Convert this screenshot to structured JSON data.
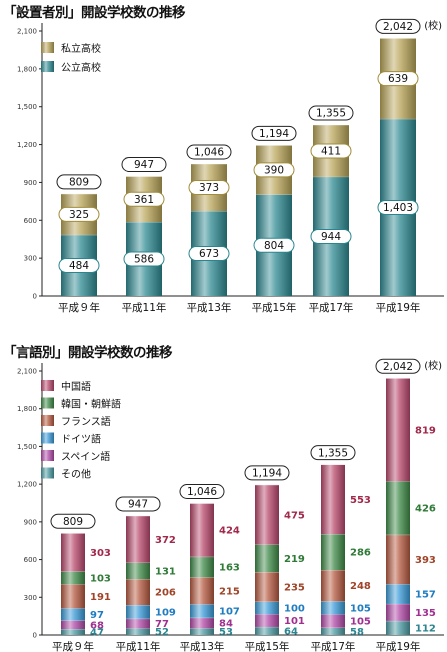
{
  "chart_data": [
    {
      "type": "bar",
      "stacked": true,
      "title": "「設置者別」開設学校数の推移",
      "unit_label": "(校)",
      "categories": [
        "平成９年",
        "平成11年",
        "平成13年",
        "平成15年",
        "平成17年",
        "平成19年"
      ],
      "ylim": [
        0,
        2100
      ],
      "y_ticks": [
        "0",
        "300",
        "600",
        "900",
        "1,200",
        "1,500",
        "1,800",
        "2,100"
      ],
      "grid": false,
      "legend_position": "top-left",
      "series": [
        {
          "name": "公立高校",
          "values": [
            484,
            586,
            673,
            804,
            944,
            1403
          ],
          "labels": [
            "484",
            "586",
            "673",
            "804",
            "944",
            "1,403"
          ],
          "color": "#2e8a92",
          "label_color": "#2a8590"
        },
        {
          "name": "私立高校",
          "values": [
            325,
            361,
            373,
            390,
            411,
            639
          ],
          "labels": [
            "325",
            "361",
            "373",
            "390",
            "411",
            "639"
          ],
          "color": "#b8a458",
          "label_color": "#a08c3a"
        }
      ],
      "totals": [
        809,
        947,
        1046,
        1194,
        1355,
        2042
      ],
      "total_labels": [
        "809",
        "947",
        "1,046",
        "1,194",
        "1,355",
        "2,042"
      ]
    },
    {
      "type": "bar",
      "stacked": true,
      "title": "「言語別」開設学校数の推移",
      "unit_label": "(校)",
      "categories": [
        "平成９年",
        "平成11年",
        "平成13年",
        "平成15年",
        "平成17年",
        "平成19年"
      ],
      "ylim": [
        0,
        2100
      ],
      "y_ticks": [
        "0",
        "300",
        "600",
        "900",
        "1,200",
        "1,500",
        "1,800",
        "2,100"
      ],
      "grid": false,
      "legend_position": "top-left",
      "series": [
        {
          "name": "その他",
          "values": [
            47,
            52,
            53,
            64,
            58,
            112
          ],
          "labels": [
            "47",
            "52",
            "53",
            "64",
            "58",
            "112"
          ],
          "color": "#4a9aa2",
          "label_color": "#2a8590"
        },
        {
          "name": "スペイン語",
          "values": [
            68,
            77,
            84,
            101,
            105,
            135
          ],
          "labels": [
            "68",
            "77",
            "84",
            "101",
            "105",
            "135"
          ],
          "color": "#b24aa8",
          "label_color": "#a03090"
        },
        {
          "name": "ドイツ語",
          "values": [
            97,
            109,
            107,
            100,
            105,
            157
          ],
          "labels": [
            "97",
            "109",
            "107",
            "100",
            "105",
            "157"
          ],
          "color": "#3a9ad8",
          "label_color": "#1e7cc0"
        },
        {
          "name": "フランス語",
          "values": [
            191,
            206,
            215,
            235,
            248,
            393
          ],
          "labels": [
            "191",
            "206",
            "215",
            "235",
            "248",
            "393"
          ],
          "color": "#b65a40",
          "label_color": "#a04428"
        },
        {
          "name": "韓国・朝鮮語",
          "values": [
            103,
            131,
            163,
            219,
            286,
            426
          ],
          "labels": [
            "103",
            "131",
            "163",
            "219",
            "286",
            "426"
          ],
          "color": "#3f8a48",
          "label_color": "#2e7a36"
        },
        {
          "name": "中国語",
          "values": [
            303,
            372,
            424,
            475,
            553,
            819
          ],
          "labels": [
            "303",
            "372",
            "424",
            "475",
            "553",
            "819"
          ],
          "color": "#b8486c",
          "label_color": "#a0284a"
        }
      ],
      "legend_order": [
        "中国語",
        "韓国・朝鮮語",
        "フランス語",
        "ドイツ語",
        "スペイン語",
        "その他"
      ],
      "totals": [
        809,
        947,
        1046,
        1194,
        1355,
        2042
      ],
      "total_labels": [
        "809",
        "947",
        "1,046",
        "1,194",
        "1,355",
        "2,042"
      ]
    }
  ]
}
